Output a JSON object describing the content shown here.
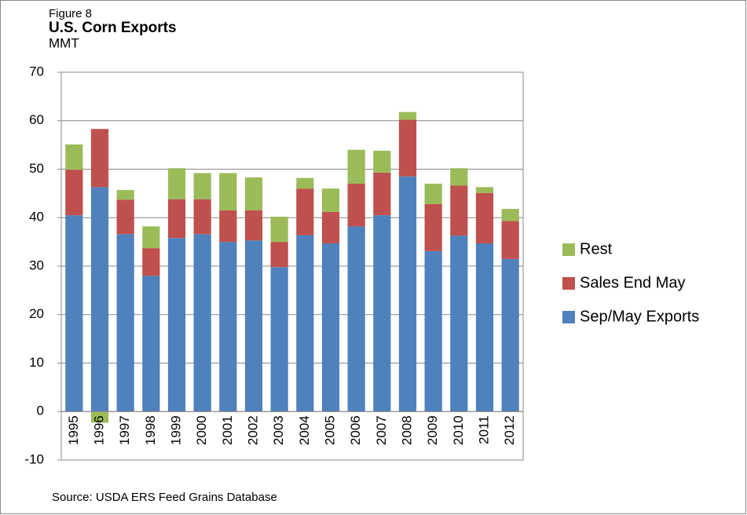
{
  "chart_data": {
    "type": "stacked_bar",
    "figure_label": "Figure 8",
    "title": "U.S. Corn Exports",
    "y_label": "MMT",
    "source": "Source: USDA ERS Feed Grains Database",
    "categories": [
      "1995",
      "1996",
      "1997",
      "1998",
      "1999",
      "2000",
      "2001",
      "2002",
      "2003",
      "2004",
      "2005",
      "2006",
      "2007",
      "2008",
      "2009",
      "2010",
      "2011",
      "2012"
    ],
    "series": [
      {
        "name": "Sep/May Exports",
        "color": "#4f81bd",
        "values": [
          40.5,
          46.3,
          36.6,
          28,
          35.8,
          36.6,
          35,
          35.3,
          29.8,
          36.4,
          34.7,
          38.2,
          40.5,
          48.5,
          33.1,
          36.3,
          34.7,
          31.5
        ]
      },
      {
        "name": "Sales End May",
        "color": "#c0504d",
        "values": [
          9.4,
          12,
          7.1,
          5.7,
          8,
          7.2,
          6.5,
          6.2,
          5.2,
          9.6,
          6.5,
          8.8,
          8.8,
          11.7,
          9.7,
          10.3,
          10.4,
          7.8
        ]
      },
      {
        "name": "Rest",
        "color": "#9bbb59",
        "values": [
          5.2,
          -2.3,
          2,
          4.5,
          6.4,
          5.4,
          7.7,
          6.8,
          5.2,
          2.2,
          4.8,
          7,
          4.5,
          1.6,
          4.2,
          3.6,
          1.2,
          2.5
        ]
      }
    ],
    "ylim": [
      -10,
      70
    ],
    "yticks": [
      -10,
      0,
      10,
      20,
      30,
      40,
      50,
      60,
      70
    ],
    "grid": true,
    "legend": "right"
  }
}
